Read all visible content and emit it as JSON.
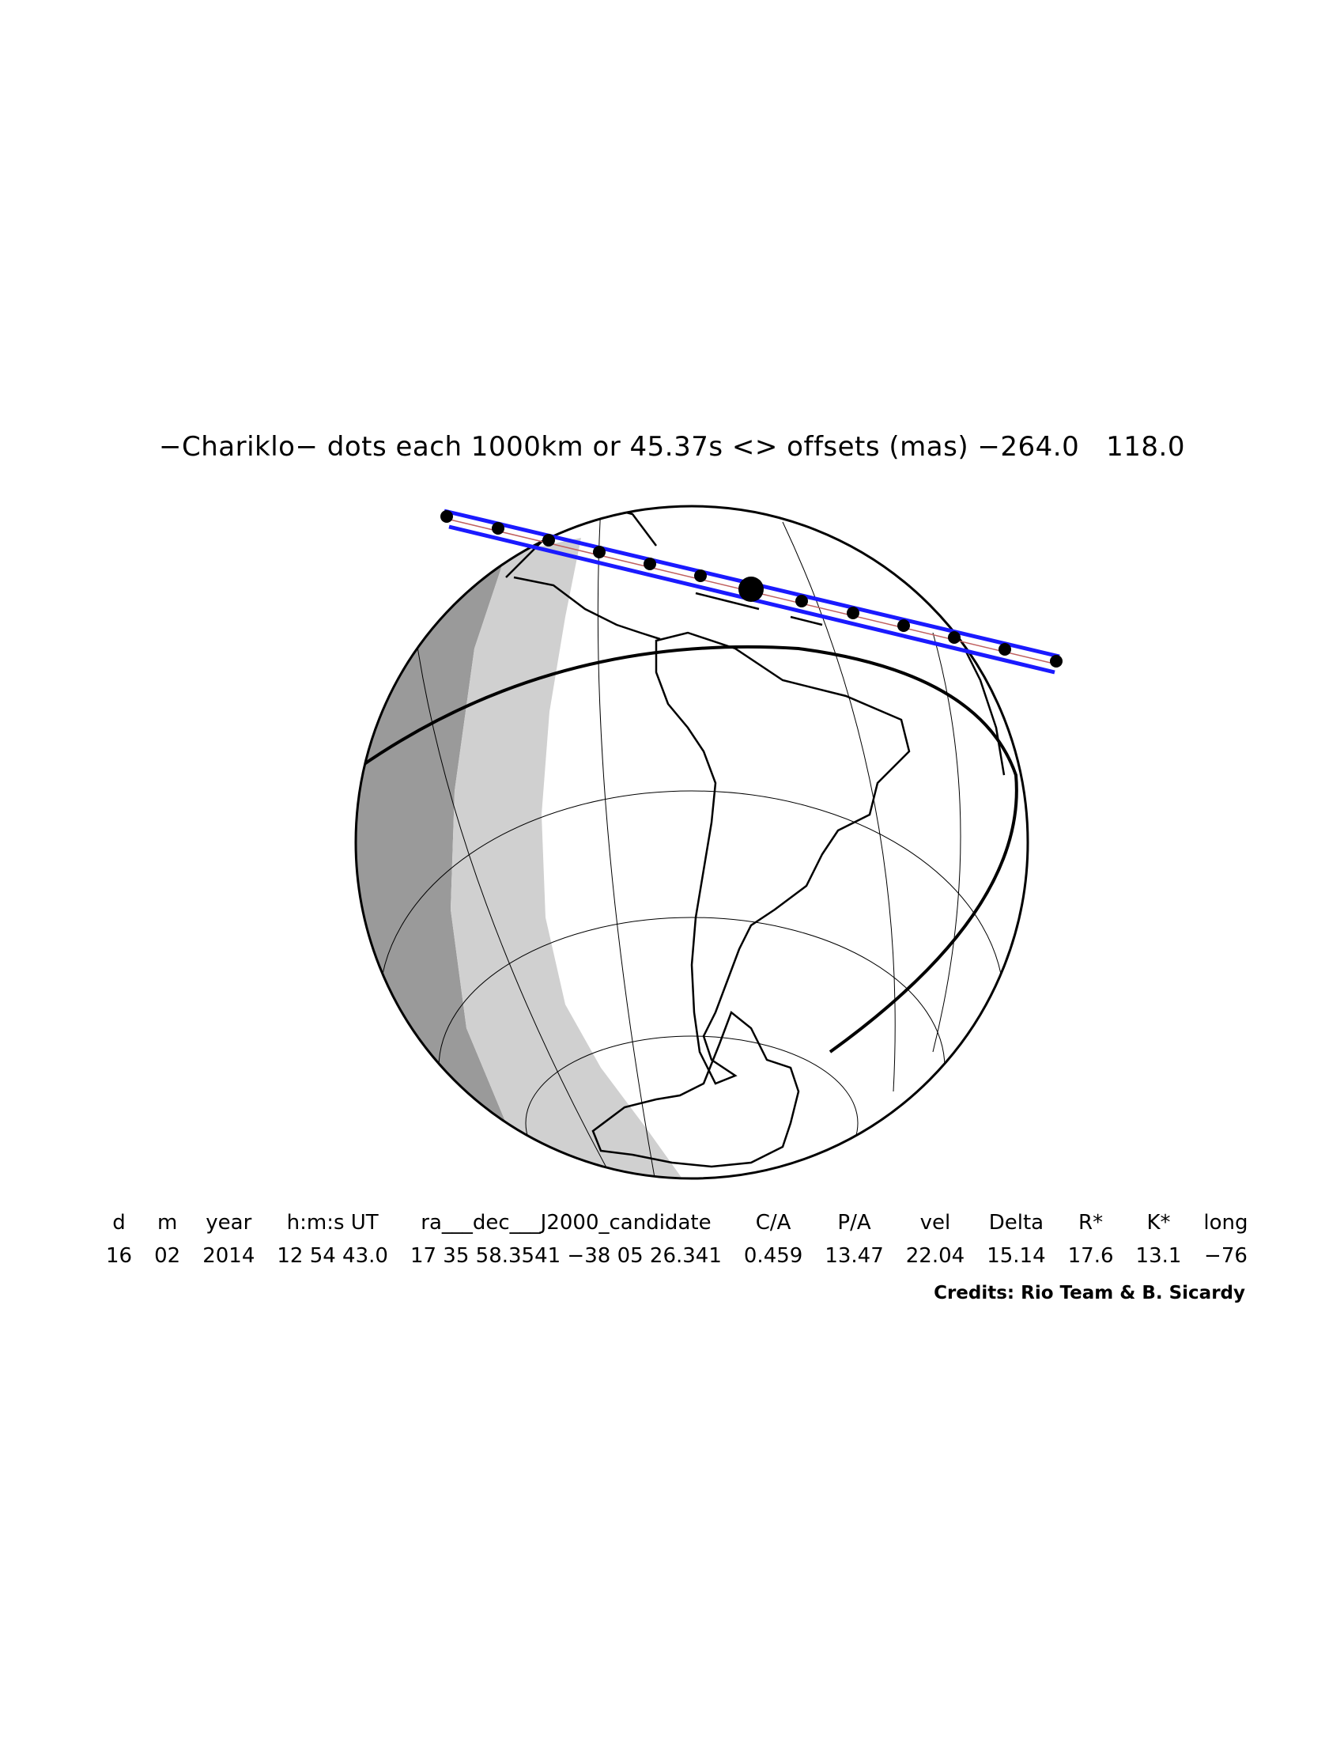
{
  "title": "−Chariklo− dots each 1000km or 45.37s <> offsets (mas) −264.0   118.0",
  "table": {
    "headers": [
      "d",
      "m",
      "year",
      "h:m:s UT",
      "ra___dec___J2000_candidate",
      "C/A",
      "P/A",
      "vel",
      "Delta",
      "R*",
      "K*",
      "long"
    ],
    "values": [
      "16",
      "02",
      "2014",
      "12 54 43.0",
      "17 35 58.3541 −38 05 26.341",
      "0.459",
      "13.47",
      "22.04",
      "15.14",
      "17.6",
      "13.1",
      "−76"
    ]
  },
  "credits": "Credits: Rio Team & B. Sicardy",
  "colors": {
    "path_band": "#1a1aff",
    "night": "#9a9a9a",
    "twilight": "#d0d0d0",
    "day": "#ffffff",
    "outline": "#000000"
  }
}
